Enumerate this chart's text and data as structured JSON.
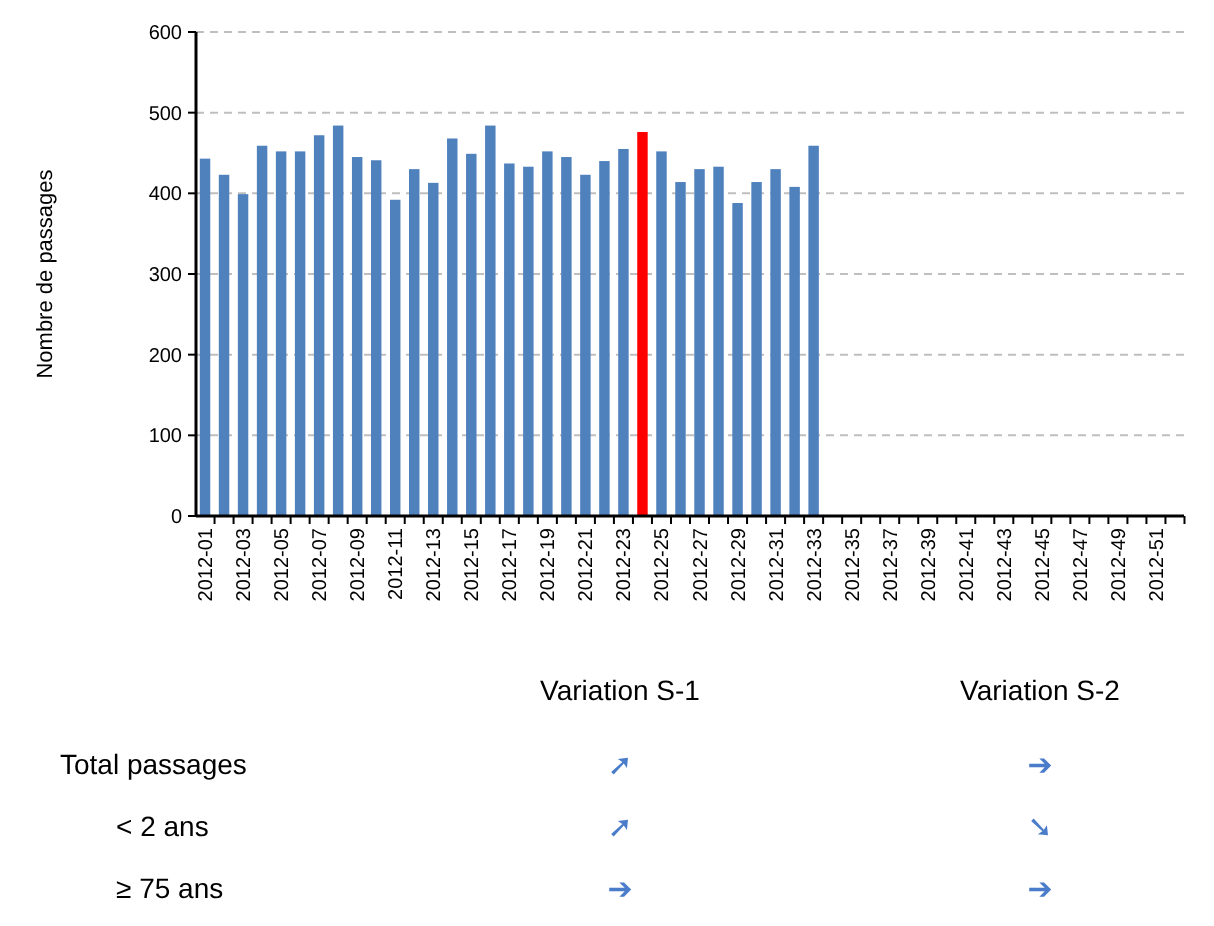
{
  "chart_data": {
    "type": "bar",
    "ylabel": "Nombre de passages",
    "categories": [
      "2012-01",
      null,
      "2012-03",
      null,
      "2012-05",
      null,
      "2012-07",
      null,
      "2012-09",
      null,
      "2012-11",
      null,
      "2012-13",
      null,
      "2012-15",
      null,
      "2012-17",
      null,
      "2012-19",
      null,
      "2012-21",
      null,
      "2012-23",
      null,
      "2012-25",
      null,
      "2012-27",
      null,
      "2012-29",
      null,
      "2012-31",
      null,
      "2012-33",
      null,
      "2012-35",
      null,
      "2012-37",
      null,
      "2012-39",
      null,
      "2012-41",
      null,
      "2012-43",
      null,
      "2012-45",
      null,
      "2012-47",
      null,
      "2012-49",
      null,
      "2012-51",
      null
    ],
    "values": [
      443,
      423,
      399,
      459,
      452,
      452,
      472,
      484,
      445,
      441,
      392,
      430,
      413,
      468,
      449,
      484,
      437,
      433,
      452,
      445,
      423,
      440,
      455,
      476,
      452,
      414,
      430,
      433,
      388,
      414,
      430,
      408,
      459,
      null,
      null,
      null,
      null,
      null,
      null,
      null,
      null,
      null,
      null,
      null,
      null,
      null,
      null,
      null,
      null,
      null,
      null,
      null
    ],
    "colors": [
      "#4f81bd",
      "#4f81bd",
      "#4f81bd",
      "#4f81bd",
      "#4f81bd",
      "#4f81bd",
      "#4f81bd",
      "#4f81bd",
      "#4f81bd",
      "#4f81bd",
      "#4f81bd",
      "#4f81bd",
      "#4f81bd",
      "#4f81bd",
      "#4f81bd",
      "#4f81bd",
      "#4f81bd",
      "#4f81bd",
      "#4f81bd",
      "#4f81bd",
      "#4f81bd",
      "#4f81bd",
      "#4f81bd",
      "#ff0000",
      "#4f81bd",
      "#4f81bd",
      "#4f81bd",
      "#4f81bd",
      "#4f81bd",
      "#4f81bd",
      "#4f81bd",
      "#4f81bd",
      "#4f81bd",
      null,
      null,
      null,
      null,
      null,
      null,
      null,
      null,
      null,
      null,
      null,
      null,
      null,
      null,
      null,
      null,
      null,
      null,
      null
    ],
    "ylim": [
      0,
      600
    ],
    "yticks": [
      0,
      100,
      200,
      300,
      400,
      500,
      600
    ],
    "grid": "y",
    "annotations": [
      "Variation S-1",
      "Variation S-2",
      "Total passages",
      "➚",
      "➔",
      "< 2 ans",
      "➚",
      "➘",
      "≥ 75 ans",
      "➔",
      "➔"
    ]
  }
}
